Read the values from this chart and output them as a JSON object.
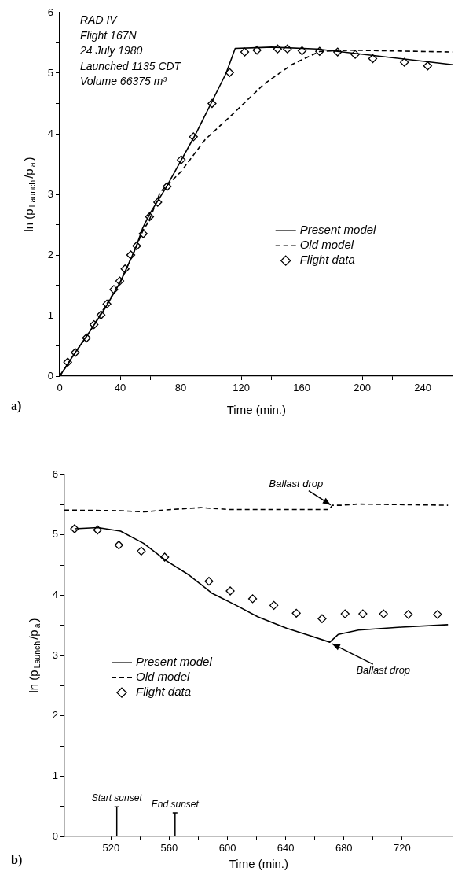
{
  "chart_data": [
    {
      "type": "line",
      "xlabel": "Time (min.)",
      "ylabel": "ln (p$_{Launch}$/p$_{a}$)",
      "xlim": [
        0,
        260
      ],
      "ylim": [
        0,
        6
      ],
      "xticks": [
        0,
        {
          "value": 20,
          "label": null
        },
        40,
        {
          "value": 60,
          "label": null
        },
        80,
        {
          "value": 100,
          "label": null
        },
        120,
        {
          "value": 140,
          "label": null
        },
        160,
        {
          "value": 180,
          "label": null
        },
        200,
        {
          "value": 220,
          "label": null
        },
        240
      ],
      "yticks": [
        0,
        {
          "value": 0.5,
          "label": null
        },
        1,
        {
          "value": 1.5,
          "label": null
        },
        2,
        {
          "value": 2.5,
          "label": null
        },
        3,
        {
          "value": 3.5,
          "label": null
        },
        4,
        {
          "value": 4.5,
          "label": null
        },
        5,
        {
          "value": 5.5,
          "label": null
        },
        6
      ],
      "legend": "right",
      "annotations": [
        "RAD IV",
        "Flight 167N",
        "24 July 1980",
        "Launched 1135 CDT",
        "Volume 66375 m³",
        "a)"
      ],
      "series": [
        {
          "name": "Present model",
          "type": "line",
          "color": "#000000",
          "line_style": "solid",
          "marker": "none",
          "x": [
            0,
            10,
            20,
            30,
            40,
            50,
            55,
            60,
            70,
            80,
            90,
            100,
            110,
            116,
            130,
            140,
            170,
            260
          ],
          "values": [
            0,
            0.38,
            0.74,
            1.12,
            1.55,
            2.1,
            2.45,
            2.7,
            3.1,
            3.55,
            4.0,
            4.5,
            5.0,
            5.41,
            5.42,
            5.43,
            5.4,
            5.14
          ]
        },
        {
          "name": "Old model",
          "type": "line",
          "color": "#000000",
          "line_style": "dashed",
          "marker": "none",
          "x": [
            0,
            20,
            40,
            50,
            55,
            59,
            66.5,
            80,
            96,
            115,
            135,
            154,
            172,
            192,
            260
          ],
          "values": [
            0,
            0.74,
            1.55,
            2.1,
            2.4,
            2.56,
            3.04,
            3.37,
            3.9,
            4.34,
            4.82,
            5.15,
            5.36,
            5.38,
            5.35
          ]
        },
        {
          "name": "Flight data",
          "type": "scatter",
          "color": "#000000",
          "marker": "diamond",
          "x": [
            5.3,
            10.3,
            17.7,
            22.7,
            27.3,
            31.2,
            35.8,
            39.7,
            43.2,
            47,
            50.9,
            55.2,
            59.4,
            64.8,
            71,
            80.3,
            88.4,
            100.7,
            112.3,
            122.3,
            130.4,
            144,
            150.5,
            160.2,
            171.8,
            183.7,
            195.3,
            206.9,
            227.8,
            243.2
          ],
          "values": [
            0.23,
            0.39,
            0.63,
            0.85,
            1.01,
            1.19,
            1.43,
            1.57,
            1.77,
            2.0,
            2.15,
            2.35,
            2.63,
            2.87,
            3.13,
            3.57,
            3.95,
            4.5,
            5.01,
            5.35,
            5.38,
            5.4,
            5.4,
            5.37,
            5.36,
            5.35,
            5.31,
            5.24,
            5.18,
            5.12
          ]
        }
      ]
    },
    {
      "type": "line",
      "xlabel": "Time (min.)",
      "ylabel": "ln (p$_{Launch}$/p$_{a}$)",
      "xlim": [
        488,
        755
      ],
      "ylim": [
        0,
        6
      ],
      "xticks": [
        {
          "value": 500,
          "label": null
        },
        520,
        {
          "value": 540,
          "label": null
        },
        560,
        {
          "value": 580,
          "label": null
        },
        600,
        {
          "value": 620,
          "label": null
        },
        640,
        {
          "value": 660,
          "label": null
        },
        680,
        {
          "value": 700,
          "label": null
        },
        720,
        {
          "value": 740,
          "label": null
        }
      ],
      "yticks": [
        0,
        {
          "value": 0.5,
          "label": null
        },
        1,
        {
          "value": 1.5,
          "label": null
        },
        2,
        {
          "value": 2.5,
          "label": null
        },
        3,
        {
          "value": 3.5,
          "label": null
        },
        4,
        {
          "value": 4.5,
          "label": null
        },
        5,
        {
          "value": 5.5,
          "label": null
        },
        6
      ],
      "legend": "left",
      "annotations": [
        "b)",
        {
          "text": "Ballast drop",
          "x": 672,
          "y": 5.47
        },
        {
          "text": "Ballast drop",
          "x": 670.3,
          "y": 3.22
        }
      ],
      "ref_lines": [
        {
          "axis": "x",
          "value": 524,
          "label": "Start sunset"
        },
        {
          "axis": "x",
          "value": 564,
          "label": "End sunset"
        }
      ],
      "series": [
        {
          "name": "Present model",
          "type": "line",
          "color": "#000000",
          "line_style": "solid",
          "marker": "none",
          "x": [
            495,
            511,
            526.6,
            542.3,
            558,
            573.8,
            589.5,
            605.3,
            621,
            640.8,
            656.5,
            670.3,
            676.2,
            690,
            719.6,
            751.5
          ],
          "values": [
            5.1,
            5.12,
            5.06,
            4.86,
            4.57,
            4.33,
            4.03,
            3.84,
            3.64,
            3.45,
            3.33,
            3.22,
            3.35,
            3.42,
            3.47,
            3.51
          ]
        },
        {
          "name": "Old model",
          "type": "line",
          "color": "#000000",
          "line_style": "dashed",
          "marker": "none",
          "x": [
            488,
            526.6,
            542.3,
            562,
            581.7,
            601.4,
            670,
            672,
            678.3,
            690,
            751.5
          ],
          "values": [
            5.41,
            5.4,
            5.38,
            5.42,
            5.45,
            5.42,
            5.42,
            5.49,
            5.49,
            5.51,
            5.49
          ]
        },
        {
          "name": "Flight data",
          "type": "scatter",
          "color": "#000000",
          "marker": "diamond",
          "x": [
            495,
            510.8,
            525.4,
            540.8,
            556.9,
            587.3,
            601.9,
            617.3,
            631.9,
            647.3,
            665,
            680.8,
            693,
            707.2,
            724.2,
            744.3
          ],
          "values": [
            5.1,
            5.08,
            4.83,
            4.73,
            4.63,
            4.23,
            4.07,
            3.94,
            3.83,
            3.7,
            3.61,
            3.69,
            3.69,
            3.69,
            3.68,
            3.68
          ]
        }
      ]
    }
  ]
}
